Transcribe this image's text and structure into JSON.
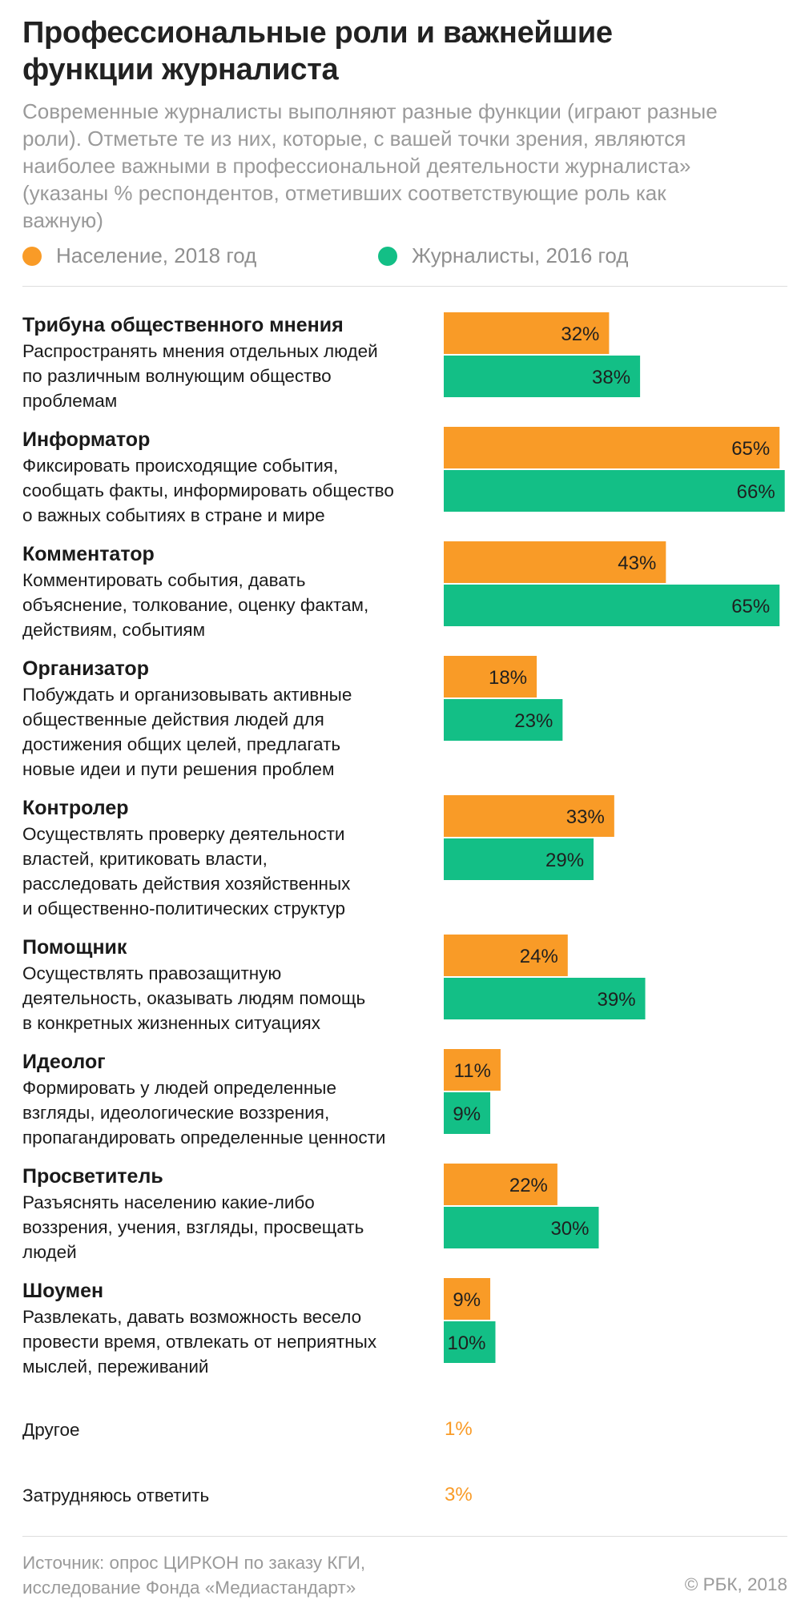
{
  "header": {
    "title_lines": [
      "Профессиональные роли и важнейшие",
      "функции журналиста"
    ],
    "subtitle_lines": [
      "Современные журналисты выполняют разные функции (играют разные",
      "роли). Отметьте те из них, которые, с вашей точки зрения, являются",
      "наиболее важными в профессиональной деятельности журналиста»",
      "(указаны % респондентов, отметивших соответствующие роль как",
      "важную)"
    ]
  },
  "legend": {
    "population_label": "Население, 2018 год",
    "journalists_label": "Журналисты, 2016 год"
  },
  "colors": {
    "population": "#f99b27",
    "journalists": "#13bf86",
    "divider": "#dddddd"
  },
  "chart_data": {
    "type": "bar",
    "orientation": "horizontal",
    "value_suffix": "%",
    "series": [
      {
        "name": "Население, 2018 год",
        "values": [
          32,
          65,
          43,
          18,
          33,
          24,
          11,
          22,
          9
        ]
      },
      {
        "name": "Журналисты, 2016 год",
        "values": [
          38,
          66,
          65,
          23,
          29,
          39,
          9,
          30,
          10
        ]
      }
    ],
    "categories": [
      {
        "name": "Трибуна общественного мнения",
        "desc": [
          "Распространять мнения отдельных людей",
          "по различным волнующим общество",
          "проблемам"
        ]
      },
      {
        "name": "Информатор",
        "desc": [
          "Фиксировать происходящие события,",
          "сообщать факты, информировать общество",
          "о важных событиях в стране и мире"
        ]
      },
      {
        "name": "Комментатор",
        "desc": [
          "Комментировать события, давать",
          "объяснение, толкование, оценку фактам,",
          "действиям, событиям"
        ]
      },
      {
        "name": "Организатор",
        "desc": [
          "Побуждать и организовывать активные",
          "общественные действия людей для",
          "достижения общих целей, предлагать",
          "новые идеи и пути решения проблем"
        ]
      },
      {
        "name": "Контролер",
        "desc": [
          "Осуществлять проверку деятельности",
          "властей, критиковать власти,",
          "расследовать действия хозяйственных",
          "и общественно-политических структур"
        ]
      },
      {
        "name": "Помощник",
        "desc": [
          "Осуществлять правозащитную",
          "деятельность, оказывать людям помощь",
          "в конкретных жизненных ситуациях"
        ]
      },
      {
        "name": "Идеолог",
        "desc": [
          "Формировать у людей определенные",
          "взгляды, идеологические воззрения,",
          "пропагандировать определенные ценности"
        ]
      },
      {
        "name": "Просветитель",
        "desc": [
          "Разъяснять населению какие-либо",
          "воззрения, учения, взгляды, просвещать",
          "людей"
        ]
      },
      {
        "name": "Шоумен",
        "desc": [
          "Развлекать, давать возможность весело",
          "провести время, отвлекать от неприятных",
          "мыслей, переживаний"
        ]
      }
    ],
    "extras": [
      {
        "name": "Другое",
        "value": 1,
        "label": "1%"
      },
      {
        "name": "Затрудняюсь ответить",
        "value": 3,
        "label": "3%"
      }
    ]
  },
  "footer": {
    "source_lines": [
      "Источник: опрос ЦИРКОН по заказу КГИ,",
      "исследование Фонда «Медиастандарт»"
    ],
    "copyright": "© РБК, 2018"
  }
}
